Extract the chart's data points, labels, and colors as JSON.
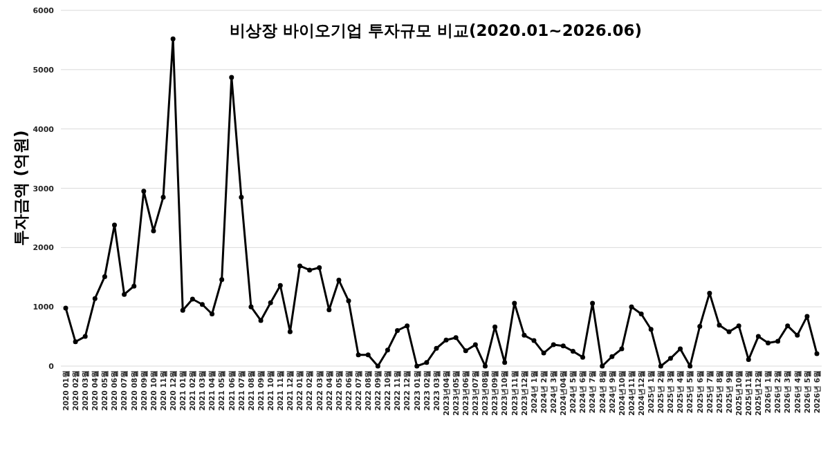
{
  "chart_data": {
    "type": "line",
    "title": "비상장 바이오기업 투자규모 비교(2020.01~2026.06)",
    "ylabel": "투자금액 (억원)",
    "categories": [
      "2020 01월",
      "2020 02월",
      "2020 03월",
      "2020 04월",
      "2020 05월",
      "2020 06월",
      "2020 07월",
      "2020 08월",
      "2020 09월",
      "2020 10월",
      "2020 11월",
      "2020 12월",
      "2021 01월",
      "2021 02월",
      "2021 03월",
      "2021 04월",
      "2021 05월",
      "2021 06월",
      "2021 07월",
      "2021 08월",
      "2021 09월",
      "2021 10월",
      "2021 11월",
      "2021 12월",
      "2022 01월",
      "2022 02월",
      "2022 03월",
      "2022 04월",
      "2022 05월",
      "2022 06월",
      "2022 07월",
      "2022 08월",
      "2022 09월",
      "2022 10월",
      "2022 11월",
      "2022 12월",
      "2023 01월",
      "2023 02월",
      "2023 03월",
      "2023년04월",
      "2023년05월",
      "2023년06월",
      "2023년07월",
      "2023년08월",
      "2023년09월",
      "2023년10월",
      "2023년11월",
      "2023년12월",
      "2024년 1월",
      "2024년 2월",
      "2024년 3월",
      "2024년04월",
      "2024년 5월",
      "2024년 6월",
      "2024년 7월",
      "2024년 8월",
      "2024년 9월",
      "2024년10월",
      "2024년11월",
      "2024년12월",
      "2025년 1월",
      "2025년 2월",
      "2025년 3월",
      "2025년 4월",
      "2025년 5월",
      "2025년 6월",
      "2025년 7월",
      "2025년 8월",
      "2025년 9월",
      "2025년10월",
      "2025년11월",
      "2025년12월",
      "2026년 1월",
      "2026년 2월",
      "2026년 3월",
      "2026년 4월",
      "2026년 5월",
      "2026년 6월"
    ],
    "values": [
      980,
      410,
      500,
      1140,
      1510,
      2380,
      1210,
      1350,
      2950,
      2280,
      2850,
      5520,
      940,
      1130,
      1040,
      880,
      1460,
      4870,
      2850,
      1000,
      770,
      1070,
      1360,
      580,
      1690,
      1620,
      1660,
      950,
      1450,
      1100,
      190,
      190,
      0,
      270,
      600,
      680,
      0,
      60,
      300,
      440,
      480,
      260,
      360,
      0,
      660,
      60,
      1060,
      520,
      430,
      220,
      360,
      340,
      250,
      150,
      1060,
      0,
      160,
      290,
      1000,
      880,
      620,
      0,
      130,
      290,
      0,
      670,
      1230,
      690,
      580,
      680,
      110,
      500,
      390,
      420,
      680,
      520,
      840,
      210
    ],
    "color": "#000000",
    "ylim": [
      0,
      6000
    ],
    "yticks": [
      0,
      1000,
      2000,
      3000,
      4000,
      5000,
      6000
    ],
    "grid": "y",
    "marker": "circle",
    "line_style": "solid"
  }
}
